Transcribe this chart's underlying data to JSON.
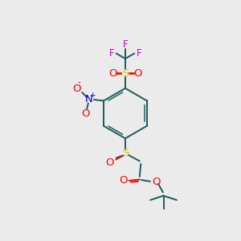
{
  "background_color": "#ebebeb",
  "figure_size": [
    3.0,
    3.0
  ],
  "dpi": 100,
  "bond_color": "#1a5c5c",
  "bond_lw": 1.4,
  "S_color": "#cccc00",
  "O_color": "#ff0000",
  "N_color": "#0000cc",
  "F_color": "#cc00cc",
  "text_fontsize": 8.5,
  "xlim": [
    0,
    10
  ],
  "ylim": [
    0,
    10
  ]
}
